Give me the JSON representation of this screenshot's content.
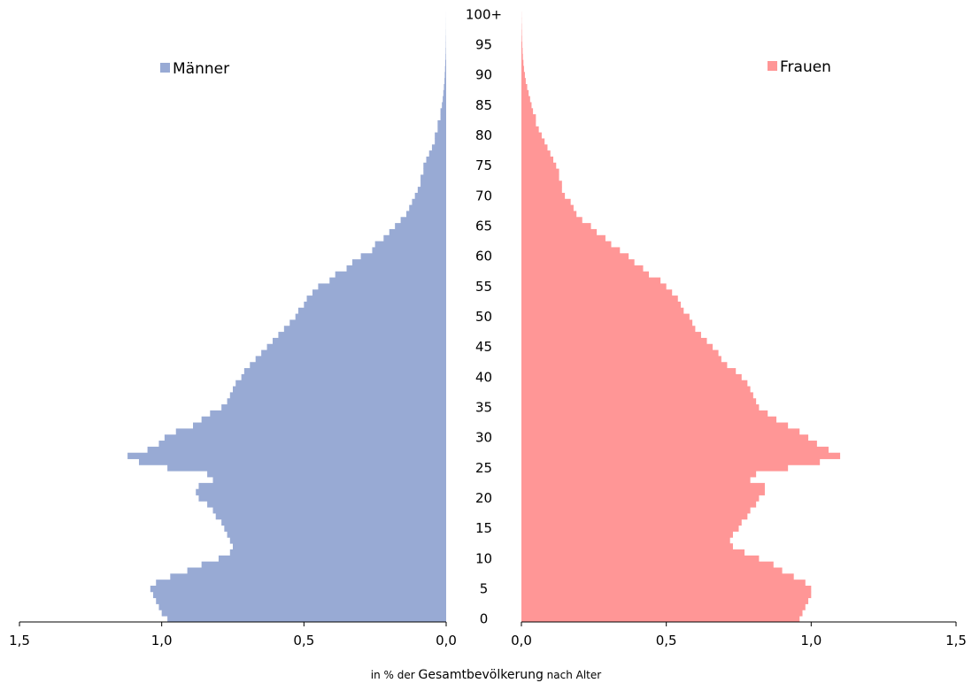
{
  "chart_data": {
    "type": "bar",
    "orientation": "horizontal-population-pyramid",
    "y_categories": [
      "0",
      "1",
      "2",
      "3",
      "4",
      "5",
      "6",
      "7",
      "8",
      "9",
      "10",
      "11",
      "12",
      "13",
      "14",
      "15",
      "16",
      "17",
      "18",
      "19",
      "20",
      "21",
      "22",
      "23",
      "24",
      "25",
      "26",
      "27",
      "28",
      "29",
      "30",
      "31",
      "32",
      "33",
      "34",
      "35",
      "36",
      "37",
      "38",
      "39",
      "40",
      "41",
      "42",
      "43",
      "44",
      "45",
      "46",
      "47",
      "48",
      "49",
      "50",
      "51",
      "52",
      "53",
      "54",
      "55",
      "56",
      "57",
      "58",
      "59",
      "60",
      "61",
      "62",
      "63",
      "64",
      "65",
      "66",
      "67",
      "68",
      "69",
      "70",
      "71",
      "72",
      "73",
      "74",
      "75",
      "76",
      "77",
      "78",
      "79",
      "80",
      "81",
      "82",
      "83",
      "84",
      "85",
      "86",
      "87",
      "88",
      "89",
      "90",
      "91",
      "92",
      "93",
      "94",
      "95",
      "96",
      "97",
      "98",
      "99",
      "100+"
    ],
    "y_tick_labels": [
      "0",
      "5",
      "10",
      "15",
      "20",
      "25",
      "30",
      "35",
      "40",
      "45",
      "50",
      "55",
      "60",
      "65",
      "70",
      "75",
      "80",
      "85",
      "90",
      "95",
      "100+"
    ],
    "x_tick_labels_left": [
      "1,5",
      "1,0",
      "0,5",
      "0,0"
    ],
    "x_tick_labels_right": [
      "0,0",
      "0,5",
      "1,0",
      "1,5"
    ],
    "xlim": [
      0,
      1.5
    ],
    "series": [
      {
        "name": "Männer",
        "color": "#98aad4",
        "values": [
          0.98,
          1.0,
          1.01,
          1.02,
          1.03,
          1.04,
          1.02,
          0.97,
          0.91,
          0.86,
          0.8,
          0.76,
          0.75,
          0.76,
          0.77,
          0.78,
          0.79,
          0.81,
          0.82,
          0.84,
          0.87,
          0.88,
          0.87,
          0.82,
          0.84,
          0.98,
          1.08,
          1.12,
          1.05,
          1.01,
          0.99,
          0.95,
          0.89,
          0.86,
          0.83,
          0.79,
          0.77,
          0.76,
          0.75,
          0.74,
          0.72,
          0.71,
          0.69,
          0.67,
          0.65,
          0.63,
          0.61,
          0.59,
          0.57,
          0.55,
          0.53,
          0.52,
          0.5,
          0.49,
          0.47,
          0.45,
          0.41,
          0.39,
          0.35,
          0.33,
          0.3,
          0.26,
          0.25,
          0.22,
          0.2,
          0.18,
          0.16,
          0.14,
          0.13,
          0.12,
          0.11,
          0.1,
          0.09,
          0.09,
          0.08,
          0.08,
          0.07,
          0.06,
          0.05,
          0.04,
          0.04,
          0.03,
          0.03,
          0.02,
          0.02,
          0.015,
          0.012,
          0.01,
          0.008,
          0.006,
          0.005,
          0.004,
          0.003,
          0.002,
          0.0015,
          0.001,
          0.0008,
          0.0005,
          0.0003,
          0.0002,
          0.0001
        ]
      },
      {
        "name": "Frauen",
        "color": "#ff9696",
        "values": [
          0.96,
          0.97,
          0.98,
          0.99,
          1.0,
          1.0,
          0.98,
          0.94,
          0.9,
          0.87,
          0.82,
          0.77,
          0.73,
          0.72,
          0.73,
          0.75,
          0.76,
          0.78,
          0.79,
          0.81,
          0.82,
          0.84,
          0.84,
          0.79,
          0.81,
          0.92,
          1.03,
          1.1,
          1.06,
          1.02,
          0.99,
          0.96,
          0.92,
          0.88,
          0.85,
          0.82,
          0.81,
          0.8,
          0.79,
          0.78,
          0.76,
          0.74,
          0.71,
          0.69,
          0.68,
          0.66,
          0.64,
          0.62,
          0.6,
          0.59,
          0.58,
          0.56,
          0.55,
          0.54,
          0.52,
          0.5,
          0.48,
          0.44,
          0.42,
          0.39,
          0.37,
          0.34,
          0.31,
          0.29,
          0.26,
          0.24,
          0.21,
          0.19,
          0.18,
          0.17,
          0.15,
          0.14,
          0.14,
          0.13,
          0.13,
          0.12,
          0.11,
          0.1,
          0.09,
          0.08,
          0.07,
          0.06,
          0.05,
          0.05,
          0.04,
          0.035,
          0.03,
          0.025,
          0.02,
          0.015,
          0.012,
          0.009,
          0.007,
          0.005,
          0.004,
          0.003,
          0.002,
          0.0015,
          0.001,
          0.0005,
          0.0003
        ]
      }
    ],
    "xlabel": {
      "part1": "in % der ",
      "part2": "Gesamtbevölkerung",
      "part3": " nach Alter"
    },
    "legend_placement": "top-left and top-right",
    "grid": false
  }
}
